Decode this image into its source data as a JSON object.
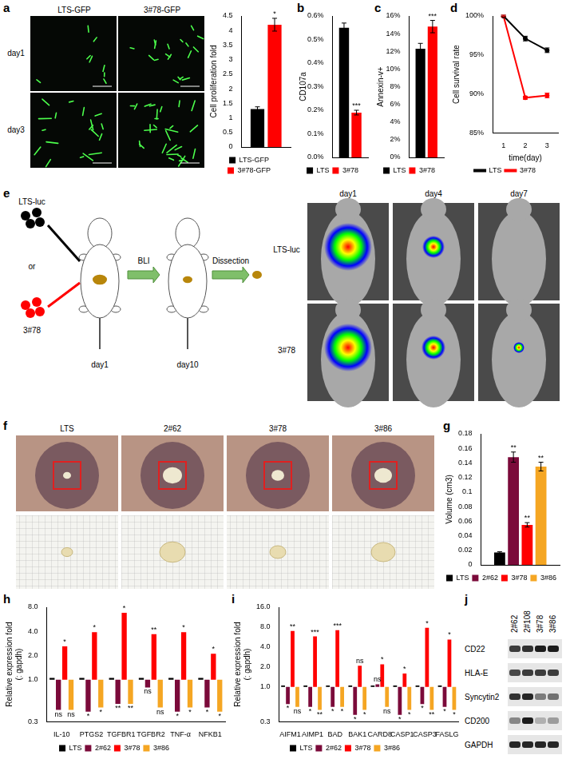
{
  "chart_data": [
    {
      "panel": "a",
      "type": "bar",
      "ylabel": "Cell proliferation fold",
      "categories": [
        null
      ],
      "series": [
        {
          "name": "LTS-GFP",
          "color": "#000000",
          "values": [
            1.3
          ],
          "errors": [
            0.08
          ]
        },
        {
          "name": "3#78-GFP",
          "color": "#ff0000",
          "values": [
            4.2
          ],
          "errors": [
            0.22
          ],
          "significance": [
            "*"
          ]
        }
      ],
      "ylim": [
        0,
        4.5
      ],
      "yticks": [
        0,
        0.5,
        1,
        1.5,
        2,
        2.5,
        3,
        3.5,
        4,
        4.5
      ],
      "legend": "bottom",
      "grid": false,
      "tick_labels": "y"
    },
    {
      "panel": "b",
      "type": "bar",
      "ylabel": "CD107a",
      "categories": [
        null
      ],
      "series": [
        {
          "name": "LTS",
          "color": "#000000",
          "values": [
            0.55
          ],
          "errors": [
            0.02
          ]
        },
        {
          "name": "3#78",
          "color": "#ff0000",
          "values": [
            0.19
          ],
          "errors": [
            0.01
          ],
          "significance": [
            "***"
          ]
        }
      ],
      "ylim": [
        0,
        0.6
      ],
      "yticks": [
        {
          "value": 0,
          "label": "0.0%"
        },
        {
          "value": 0.1,
          "label": "0.1%"
        },
        {
          "value": 0.2,
          "label": "0.2%"
        },
        {
          "value": 0.3,
          "label": "0.3%"
        },
        {
          "value": 0.4,
          "label": "0.4%"
        },
        {
          "value": 0.5,
          "label": "0.5%"
        },
        {
          "value": 0.6,
          "label": "0.6%"
        }
      ],
      "legend": "bottom",
      "grid": false,
      "tick_labels": "y"
    },
    {
      "panel": "c",
      "type": "bar",
      "ylabel": "Annexin-v+",
      "categories": [
        null
      ],
      "series": [
        {
          "name": "LTS",
          "color": "#000000",
          "values": [
            12.3
          ],
          "errors": [
            0.6
          ]
        },
        {
          "name": "3#78",
          "color": "#ff0000",
          "values": [
            14.8
          ],
          "errors": [
            0.7
          ],
          "significance": [
            "***"
          ]
        }
      ],
      "ylim": [
        0,
        16
      ],
      "yticks": [
        {
          "value": 0,
          "label": "0%"
        },
        {
          "value": 2,
          "label": "2%"
        },
        {
          "value": 4,
          "label": "4%"
        },
        {
          "value": 6,
          "label": "6%"
        },
        {
          "value": 8,
          "label": "8%"
        },
        {
          "value": 10,
          "label": "10%"
        },
        {
          "value": 12,
          "label": "12%"
        },
        {
          "value": 14,
          "label": "14%"
        },
        {
          "value": 16,
          "label": "16%"
        }
      ],
      "legend": "bottom",
      "grid": false,
      "tick_labels": "y"
    },
    {
      "panel": "d",
      "type": "line",
      "ylabel": "Cell survival rate",
      "xlabel": "time(day)",
      "categories": [
        "1",
        "2",
        "3"
      ],
      "series": [
        {
          "name": "LTS",
          "color": "#000000",
          "values": [
            100,
            97.1,
            95.6
          ],
          "errors": [
            0.1,
            0.3,
            0.3
          ]
        },
        {
          "name": "3#78",
          "color": "#ff0000",
          "values": [
            100,
            89.5,
            89.8
          ],
          "errors": [
            0.1,
            0.2,
            0.3
          ]
        }
      ],
      "ylim": [
        85,
        100
      ],
      "yticks": [
        {
          "value": 85,
          "label": "85%"
        },
        {
          "value": 90,
          "label": "90%"
        },
        {
          "value": 95,
          "label": "95%"
        },
        {
          "value": 100,
          "label": "100%"
        }
      ],
      "legend": "bottom",
      "grid": false
    },
    {
      "panel": "g",
      "type": "bar",
      "ylabel": "Volume (cm3)",
      "categories": [
        null
      ],
      "series": [
        {
          "name": "LTS",
          "color": "#000000",
          "values": [
            0.017
          ],
          "errors": [
            0.001
          ]
        },
        {
          "name": "2#62",
          "color": "#7b0a3a",
          "values": [
            0.148
          ],
          "errors": [
            0.007
          ],
          "significance": [
            "**"
          ]
        },
        {
          "name": "3#78",
          "color": "#ff0000",
          "values": [
            0.055
          ],
          "errors": [
            0.003
          ],
          "significance": [
            "**"
          ]
        },
        {
          "name": "3#86",
          "color": "#f5a623",
          "values": [
            0.135
          ],
          "errors": [
            0.006
          ],
          "significance": [
            "**"
          ]
        }
      ],
      "ylim": [
        0,
        0.18
      ],
      "yticks": [
        0,
        0.02,
        0.04,
        0.06,
        0.08,
        0.1,
        0.12,
        0.14,
        0.16,
        0.18
      ],
      "legend": "bottom",
      "grid": false,
      "tick_labels": "y"
    },
    {
      "panel": "h",
      "type": "bar",
      "ylabel": [
        "Relative expression fold",
        "(: gapdh)"
      ],
      "log": "y",
      "baseline": 1,
      "categories": [
        "IL-10",
        "PTGS2",
        "TGFBR1",
        "TGFBR2",
        "TNF-α",
        "NFKB1"
      ],
      "series": [
        {
          "name": "LTS",
          "color": "#000000",
          "values": [
            1.05,
            1.05,
            1.05,
            1.05,
            1.05,
            1.05
          ]
        },
        {
          "name": "2#62",
          "color": "#7b0a3a",
          "values": [
            0.42,
            0.4,
            0.5,
            0.8,
            0.4,
            0.45
          ],
          "significance": [
            "ns",
            "*",
            "**",
            "ns",
            "*",
            "*"
          ]
        },
        {
          "name": "3#78",
          "color": "#ff0000",
          "values": [
            2.6,
            3.9,
            6.8,
            3.7,
            3.9,
            2.1
          ],
          "significance": [
            "*",
            "*",
            "*",
            "**",
            "*",
            "*"
          ]
        },
        {
          "name": "3#86",
          "color": "#f5a623",
          "values": [
            0.42,
            0.45,
            0.5,
            0.45,
            0.45,
            0.4
          ],
          "significance": [
            "ns",
            "*",
            "**",
            "ns",
            "*",
            "*"
          ]
        }
      ],
      "ylim": [
        0.3,
        8
      ],
      "yticks": [
        0.3,
        {
          "value": 1,
          "label": "1.0"
        },
        {
          "value": 2,
          "label": "2.0"
        },
        {
          "value": 4,
          "label": "4.0"
        },
        {
          "value": 8,
          "label": "8.0"
        }
      ],
      "legend": "bottom",
      "grid": false
    },
    {
      "panel": "i",
      "type": "bar",
      "ylabel": [
        "Relative expression fold",
        "(: gapdh)"
      ],
      "log": "y",
      "baseline": 1,
      "categories": [
        "AIFM1",
        "AIMP1",
        "BAD",
        "BAK1",
        "CARD8",
        "CASP1",
        "CASP3",
        "FASLG"
      ],
      "series": [
        {
          "name": "LTS",
          "color": "#000000",
          "values": [
            1.05,
            1.05,
            1.05,
            1.05,
            1.05,
            1.05,
            1.05,
            1.05
          ]
        },
        {
          "name": "2#62",
          "color": "#7b0a3a",
          "values": [
            0.55,
            0.5,
            0.5,
            0.38,
            1.1,
            0.38,
            0.55,
            0.5
          ],
          "significance": [
            "*",
            "*",
            "*",
            "*",
            "ns",
            "*",
            "*",
            "*"
          ]
        },
        {
          "name": "3#78",
          "color": "#ff0000",
          "values": [
            7.0,
            5.8,
            7.2,
            2.1,
            2.2,
            1.6,
            7.8,
            5.2
          ],
          "significance": [
            "**",
            "***",
            "***",
            "ns",
            "*",
            "*",
            "*",
            "*"
          ]
        },
        {
          "name": "3#86",
          "color": "#f5a623",
          "values": [
            0.5,
            0.45,
            0.5,
            0.45,
            0.5,
            0.45,
            0.45,
            0.45
          ],
          "significance": [
            "ns",
            "**",
            "*",
            "*",
            "ns",
            "*",
            "**",
            "*"
          ]
        }
      ],
      "ylim": [
        0.3,
        16
      ],
      "yticks": [
        0.3,
        {
          "value": 1,
          "label": "1.0"
        },
        {
          "value": 2,
          "label": "2.0"
        },
        {
          "value": 4,
          "label": "4.0"
        },
        {
          "value": 8,
          "label": "8.0"
        },
        {
          "value": 16,
          "label": "16.0"
        }
      ],
      "legend": "bottom",
      "grid": false
    }
  ],
  "images": [
    {
      "panel": "a",
      "columns": [
        "LTS-GFP",
        "3#78-GFP"
      ],
      "rows": [
        "day1",
        "day3"
      ]
    },
    {
      "panel": "e",
      "groups": [
        "LTS-luc",
        "3#78"
      ],
      "connector": "or",
      "steps": [
        "BLI",
        "Dissection"
      ],
      "days": [
        "day1",
        "day10"
      ],
      "bli_columns": [
        "day1",
        "day4",
        "day7"
      ],
      "bli_rows": [
        "LTS-luc",
        "3#78"
      ]
    },
    {
      "panel": "f",
      "columns": [
        "LTS",
        "2#62",
        "3#78",
        "3#86"
      ]
    },
    {
      "panel": "j",
      "lanes": [
        "2#62",
        "2#108",
        "3#78",
        "3#86"
      ],
      "proteins": [
        "CD22",
        "HLA-E",
        "Syncytin2",
        "CD200",
        "GAPDH"
      ]
    }
  ]
}
